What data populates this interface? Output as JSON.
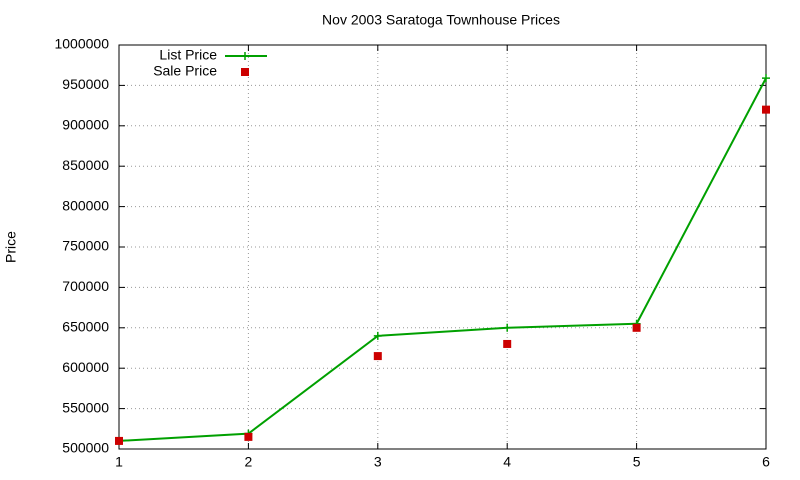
{
  "chart_data": {
    "type": "line",
    "title": "Nov 2003 Saratoga Townhouse Prices",
    "y_label": "Price",
    "x": [
      1,
      2,
      3,
      4,
      5,
      6
    ],
    "series": [
      {
        "name": "List Price",
        "color": "#00a000",
        "style": "linespoints",
        "values": [
          510000,
          519000,
          640000,
          650000,
          655000,
          959000
        ]
      },
      {
        "name": "Sale Price",
        "color": "#cc0000",
        "style": "points",
        "values": [
          510000,
          515000,
          615000,
          630000,
          650000,
          920000
        ]
      }
    ],
    "xlim": [
      1,
      6
    ],
    "xticks": [
      1,
      2,
      3,
      4,
      5,
      6
    ],
    "ylim": [
      500000,
      1000000
    ],
    "yticks": [
      500000,
      550000,
      600000,
      650000,
      700000,
      750000,
      800000,
      850000,
      900000,
      950000,
      1000000
    ],
    "grid": true,
    "legend": "top-left"
  }
}
